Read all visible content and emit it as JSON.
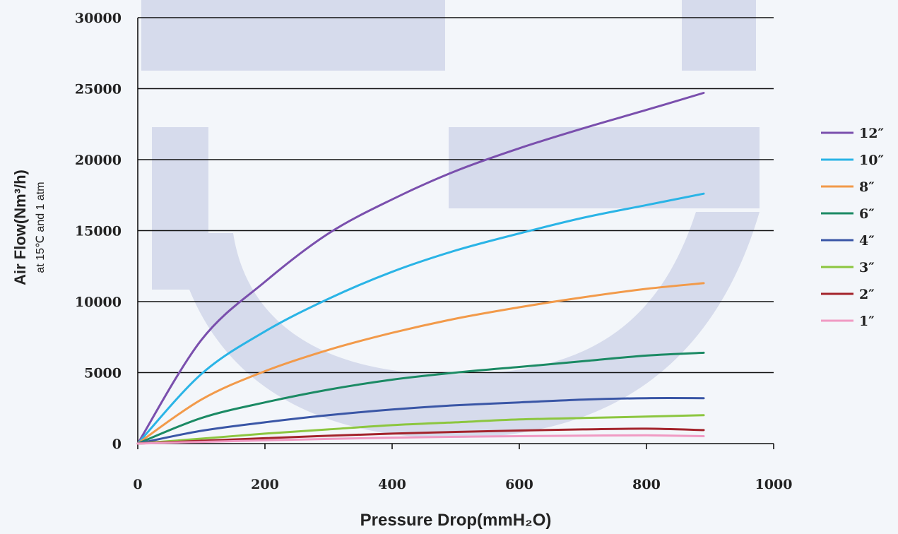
{
  "chart_data": {
    "type": "line",
    "title": "",
    "xlabel": "Pressure Drop(mmH₂O)",
    "ylabel": "Air Flow(Nm³/h)",
    "ylabel_sub": "at 15℃ and 1 atm",
    "xlim": [
      0,
      1000
    ],
    "ylim": [
      0,
      30000
    ],
    "x_ticks": [
      "0",
      "200",
      "400",
      "600",
      "800",
      "1000"
    ],
    "y_ticks": [
      "0",
      "5000",
      "10000",
      "15000",
      "20000",
      "25000",
      "30000"
    ],
    "grid": "horizontal",
    "legend_position": "right",
    "x": [
      0,
      100,
      200,
      300,
      400,
      500,
      600,
      700,
      800,
      890
    ],
    "series": [
      {
        "name": "12″",
        "color": "#7a4fad",
        "values": [
          0,
          7300,
          11400,
          14800,
          17200,
          19200,
          20800,
          22200,
          23500,
          24700
        ]
      },
      {
        "name": "10″",
        "color": "#2ab4e6",
        "values": [
          0,
          4900,
          7900,
          10200,
          12100,
          13600,
          14800,
          15900,
          16800,
          17600
        ]
      },
      {
        "name": "8″",
        "color": "#f29a4a",
        "values": [
          0,
          3100,
          5100,
          6600,
          7800,
          8800,
          9600,
          10300,
          10900,
          11300
        ]
      },
      {
        "name": "6″",
        "color": "#1b8a64",
        "values": [
          0,
          1800,
          2900,
          3800,
          4500,
          5000,
          5400,
          5800,
          6200,
          6400
        ]
      },
      {
        "name": "4″",
        "color": "#3a56a6",
        "values": [
          0,
          900,
          1500,
          2000,
          2400,
          2700,
          2900,
          3100,
          3200,
          3200
        ]
      },
      {
        "name": "3″",
        "color": "#8cc63f",
        "values": [
          0,
          350,
          700,
          1000,
          1300,
          1500,
          1700,
          1800,
          1900,
          2000
        ]
      },
      {
        "name": "2″",
        "color": "#a3232b",
        "values": [
          0,
          200,
          380,
          550,
          700,
          820,
          920,
          1000,
          1050,
          950
        ]
      },
      {
        "name": "1″",
        "color": "#f09ac3",
        "values": [
          0,
          120,
          230,
          330,
          420,
          480,
          520,
          560,
          580,
          520
        ]
      }
    ]
  },
  "colors": {
    "background": "#f3f6fa",
    "gridline": "#111111",
    "watermark": "#d6dbec"
  }
}
